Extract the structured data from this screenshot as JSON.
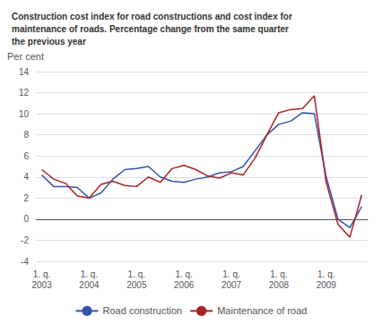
{
  "chart_data": {
    "type": "line",
    "title": "Construction cost index for road constructions and cost index for\nmaintenance of roads. Percentage change from the same quarter\nthe previous year",
    "ylabel": "Per cent",
    "categories": [
      "1. q.\n2003",
      null,
      null,
      null,
      "1. q.\n2004",
      null,
      null,
      null,
      "1. q.\n2005",
      null,
      null,
      null,
      "1. q.\n2006",
      null,
      null,
      null,
      "1. q.\n2007",
      null,
      null,
      null,
      "1. q.\n2008",
      null,
      null,
      null,
      "1. q.\n2009",
      null,
      null,
      null
    ],
    "series": [
      {
        "name": "Road construction",
        "color": "#3355aa",
        "values": [
          4.2,
          3.1,
          3.1,
          3.0,
          2.0,
          2.5,
          3.8,
          4.7,
          4.8,
          5.0,
          4.0,
          3.6,
          3.5,
          3.8,
          4.0,
          4.4,
          4.5,
          5.0,
          6.5,
          8.0,
          9.0,
          9.3,
          10.1,
          10.0,
          4.0,
          0.0,
          -0.8,
          1.2
        ]
      },
      {
        "name": "Maintenance of road",
        "color": "#aa2222",
        "values": [
          4.7,
          3.8,
          3.4,
          2.2,
          2.0,
          3.3,
          3.6,
          3.2,
          3.1,
          4.0,
          3.5,
          4.8,
          5.1,
          4.7,
          4.1,
          3.9,
          4.4,
          4.2,
          5.8,
          8.0,
          10.1,
          10.4,
          10.5,
          11.7,
          3.5,
          -0.5,
          -1.7,
          2.3
        ]
      }
    ],
    "ylim": [
      -4,
      14
    ],
    "yticks": [
      -4,
      -2,
      0,
      2,
      4,
      6,
      8,
      10,
      12,
      14
    ],
    "grid": true,
    "legend": "bottom"
  }
}
